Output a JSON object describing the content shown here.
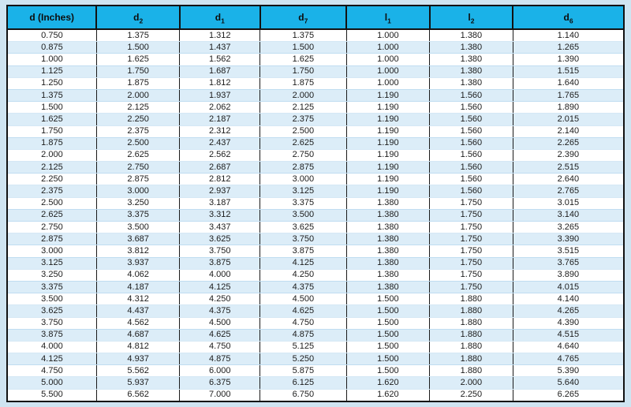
{
  "colors": {
    "header_bg": "#1ab2e8",
    "page_bg": "#cfe4f1",
    "stripe": "#dcedf8",
    "border_black": "#121212"
  },
  "chart_data": {
    "type": "table",
    "title": "",
    "columns": [
      {
        "base": "d (Inches)",
        "sub": ""
      },
      {
        "base": "d",
        "sub": "2"
      },
      {
        "base": "d",
        "sub": "1"
      },
      {
        "base": "d",
        "sub": "7"
      },
      {
        "base": "l",
        "sub": "1"
      },
      {
        "base": "l",
        "sub": "2"
      },
      {
        "base": "d",
        "sub": "6"
      }
    ],
    "rows": [
      [
        "0.750",
        "1.375",
        "1.312",
        "1.375",
        "1.000",
        "1.380",
        "1.140"
      ],
      [
        "0.875",
        "1.500",
        "1.437",
        "1.500",
        "1.000",
        "1.380",
        "1.265"
      ],
      [
        "1.000",
        "1.625",
        "1.562",
        "1.625",
        "1.000",
        "1.380",
        "1.390"
      ],
      [
        "1.125",
        "1.750",
        "1.687",
        "1.750",
        "1.000",
        "1.380",
        "1.515"
      ],
      [
        "1.250",
        "1.875",
        "1.812",
        "1.875",
        "1.000",
        "1.380",
        "1.640"
      ],
      [
        "1.375",
        "2.000",
        "1.937",
        "2.000",
        "1.190",
        "1.560",
        "1.765"
      ],
      [
        "1.500",
        "2.125",
        "2.062",
        "2.125",
        "1.190",
        "1.560",
        "1.890"
      ],
      [
        "1.625",
        "2.250",
        "2.187",
        "2.375",
        "1.190",
        "1.560",
        "2.015"
      ],
      [
        "1.750",
        "2.375",
        "2.312",
        "2.500",
        "1.190",
        "1.560",
        "2.140"
      ],
      [
        "1.875",
        "2.500",
        "2.437",
        "2.625",
        "1.190",
        "1.560",
        "2.265"
      ],
      [
        "2.000",
        "2.625",
        "2.562",
        "2.750",
        "1.190",
        "1.560",
        "2.390"
      ],
      [
        "2.125",
        "2.750",
        "2.687",
        "2.875",
        "1.190",
        "1.560",
        "2.515"
      ],
      [
        "2.250",
        "2.875",
        "2.812",
        "3.000",
        "1.190",
        "1.560",
        "2.640"
      ],
      [
        "2.375",
        "3.000",
        "2.937",
        "3.125",
        "1.190",
        "1.560",
        "2.765"
      ],
      [
        "2.500",
        "3.250",
        "3.187",
        "3.375",
        "1.380",
        "1.750",
        "3.015"
      ],
      [
        "2.625",
        "3.375",
        "3.312",
        "3.500",
        "1.380",
        "1.750",
        "3.140"
      ],
      [
        "2.750",
        "3.500",
        "3.437",
        "3.625",
        "1.380",
        "1.750",
        "3.265"
      ],
      [
        "2.875",
        "3.687",
        "3.625",
        "3.750",
        "1.380",
        "1.750",
        "3.390"
      ],
      [
        "3.000",
        "3.812",
        "3.750",
        "3.875",
        "1.380",
        "1.750",
        "3.515"
      ],
      [
        "3.125",
        "3.937",
        "3.875",
        "4.125",
        "1.380",
        "1.750",
        "3.765"
      ],
      [
        "3.250",
        "4.062",
        "4.000",
        "4.250",
        "1.380",
        "1.750",
        "3.890"
      ],
      [
        "3.375",
        "4.187",
        "4.125",
        "4.375",
        "1.380",
        "1.750",
        "4.015"
      ],
      [
        "3.500",
        "4.312",
        "4.250",
        "4.500",
        "1.500",
        "1.880",
        "4.140"
      ],
      [
        "3.625",
        "4.437",
        "4.375",
        "4.625",
        "1.500",
        "1.880",
        "4.265"
      ],
      [
        "3.750",
        "4.562",
        "4.500",
        "4.750",
        "1.500",
        "1.880",
        "4.390"
      ],
      [
        "3.875",
        "4.687",
        "4.625",
        "4.875",
        "1.500",
        "1.880",
        "4.515"
      ],
      [
        "4.000",
        "4.812",
        "4.750",
        "5.125",
        "1.500",
        "1.880",
        "4.640"
      ],
      [
        "4.125",
        "4.937",
        "4.875",
        "5.250",
        "1.500",
        "1.880",
        "4.765"
      ],
      [
        "4.750",
        "5.562",
        "6.000",
        "5.875",
        "1.500",
        "1.880",
        "5.390"
      ],
      [
        "5.000",
        "5.937",
        "6.375",
        "6.125",
        "1.620",
        "2.000",
        "5.640"
      ],
      [
        "5.500",
        "6.562",
        "7.000",
        "6.750",
        "1.620",
        "2.250",
        "6.265"
      ]
    ]
  }
}
